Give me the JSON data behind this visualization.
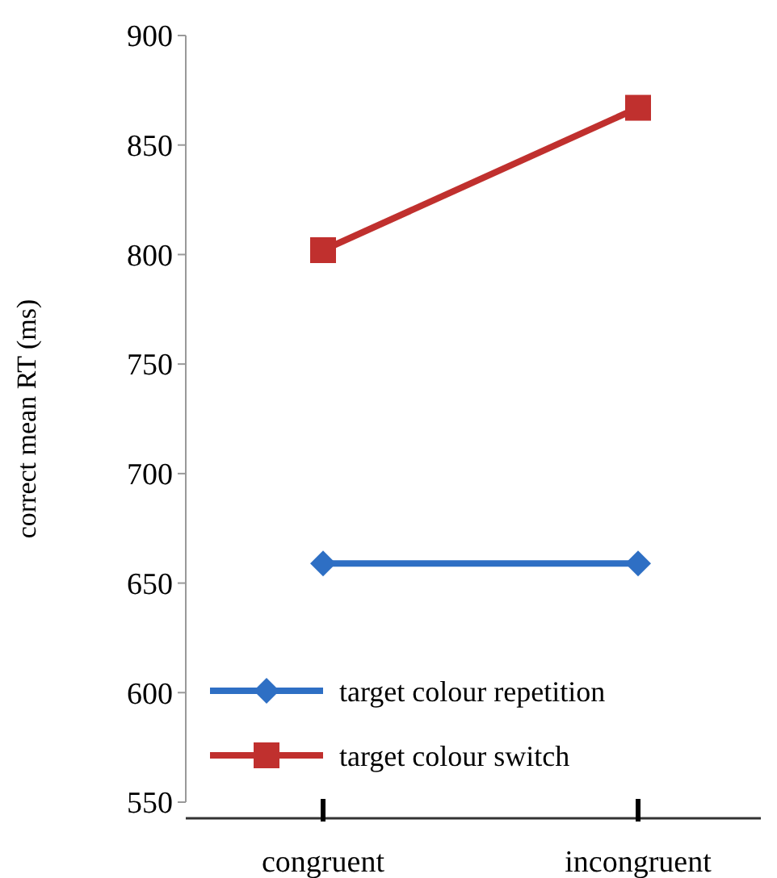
{
  "chart_data": {
    "type": "line",
    "ylabel": "correct mean RT (ms)",
    "categories": [
      "congruent",
      "incongruent"
    ],
    "ylim": [
      550,
      900
    ],
    "yticks": [
      550,
      600,
      650,
      700,
      750,
      800,
      850,
      900
    ],
    "grid": false,
    "legend": "bottom left",
    "series": [
      {
        "name": "target colour repetition",
        "color": "#2e6fc4",
        "values": [
          659,
          659
        ],
        "marker": "diamond"
      },
      {
        "name": "target colour switch",
        "color": "#c0302e",
        "values": [
          802,
          867
        ],
        "marker": "square"
      }
    ]
  }
}
